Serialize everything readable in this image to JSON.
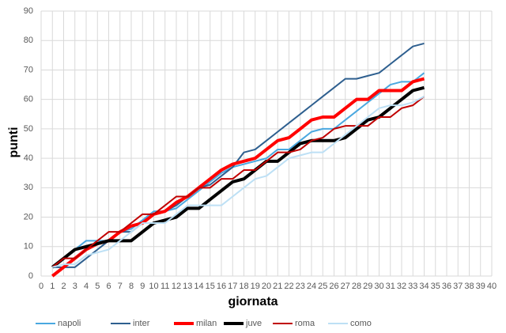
{
  "chart_data": {
    "type": "line",
    "x_label": "giornata",
    "y_label": "punti",
    "x": [
      1,
      2,
      3,
      4,
      5,
      6,
      7,
      8,
      9,
      10,
      11,
      12,
      13,
      14,
      15,
      16,
      17,
      18,
      19,
      20,
      21,
      22,
      23,
      24,
      25,
      26,
      27,
      28,
      29,
      30,
      31,
      32,
      33,
      34
    ],
    "xlim": [
      0,
      40
    ],
    "xticks": [
      0,
      1,
      2,
      3,
      4,
      5,
      6,
      7,
      8,
      9,
      10,
      11,
      12,
      13,
      14,
      15,
      16,
      17,
      18,
      19,
      20,
      21,
      22,
      23,
      24,
      25,
      26,
      27,
      28,
      29,
      30,
      31,
      32,
      33,
      34,
      35,
      36,
      37,
      38,
      39,
      40
    ],
    "ylim": [
      0,
      90
    ],
    "yticks": [
      0,
      10,
      20,
      30,
      40,
      50,
      60,
      70,
      80,
      90
    ],
    "grid": true,
    "legend": "bottom",
    "series": [
      {
        "name": "napoli",
        "color": "#4aa8e0",
        "values": [
          3,
          6,
          9,
          12,
          12,
          12,
          15,
          16,
          19,
          22,
          22,
          23,
          26,
          29,
          32,
          35,
          37,
          38,
          39,
          40,
          43,
          43,
          46,
          49,
          50,
          50,
          53,
          56,
          59,
          62,
          65,
          66,
          66,
          69
        ]
      },
      {
        "name": "inter",
        "color": "#2e5f8f",
        "values": [
          3,
          3,
          3,
          6,
          9,
          12,
          15,
          15,
          18,
          21,
          22,
          24,
          27,
          30,
          31,
          34,
          37,
          42,
          43,
          46,
          49,
          52,
          55,
          58,
          61,
          64,
          67,
          67,
          68,
          69,
          72,
          75,
          78,
          79
        ]
      },
      {
        "name": "milan",
        "color": "#ff0000",
        "values": [
          0,
          3,
          6,
          9,
          11,
          12,
          15,
          17,
          18,
          21,
          22,
          25,
          27,
          30,
          33,
          36,
          38,
          39,
          40,
          43,
          46,
          47,
          50,
          53,
          54,
          54,
          57,
          60,
          60,
          63,
          63,
          63,
          66,
          67
        ]
      },
      {
        "name": "juve",
        "color": "#000000",
        "values": [
          3,
          6,
          9,
          10,
          11,
          12,
          12,
          12,
          15,
          18,
          19,
          20,
          23,
          23,
          26,
          29,
          32,
          33,
          36,
          39,
          39,
          42,
          45,
          46,
          46,
          46,
          47,
          50,
          53,
          54,
          57,
          60,
          63,
          64
        ]
      },
      {
        "name": "roma",
        "color": "#c00000",
        "values": [
          3,
          6,
          6,
          9,
          12,
          15,
          15,
          18,
          21,
          21,
          24,
          27,
          27,
          30,
          30,
          33,
          33,
          36,
          36,
          39,
          42,
          42,
          43,
          46,
          47,
          50,
          51,
          51,
          51,
          54,
          54,
          57,
          58,
          61
        ]
      },
      {
        "name": "como",
        "color": "#bde0f5",
        "values": [
          3,
          4,
          4,
          7,
          8,
          9,
          12,
          15,
          18,
          18,
          18,
          21,
          24,
          24,
          24,
          24,
          27,
          30,
          33,
          34,
          37,
          40,
          41,
          42,
          42,
          45,
          48,
          51,
          54,
          57,
          58,
          58,
          59,
          61
        ]
      }
    ]
  }
}
